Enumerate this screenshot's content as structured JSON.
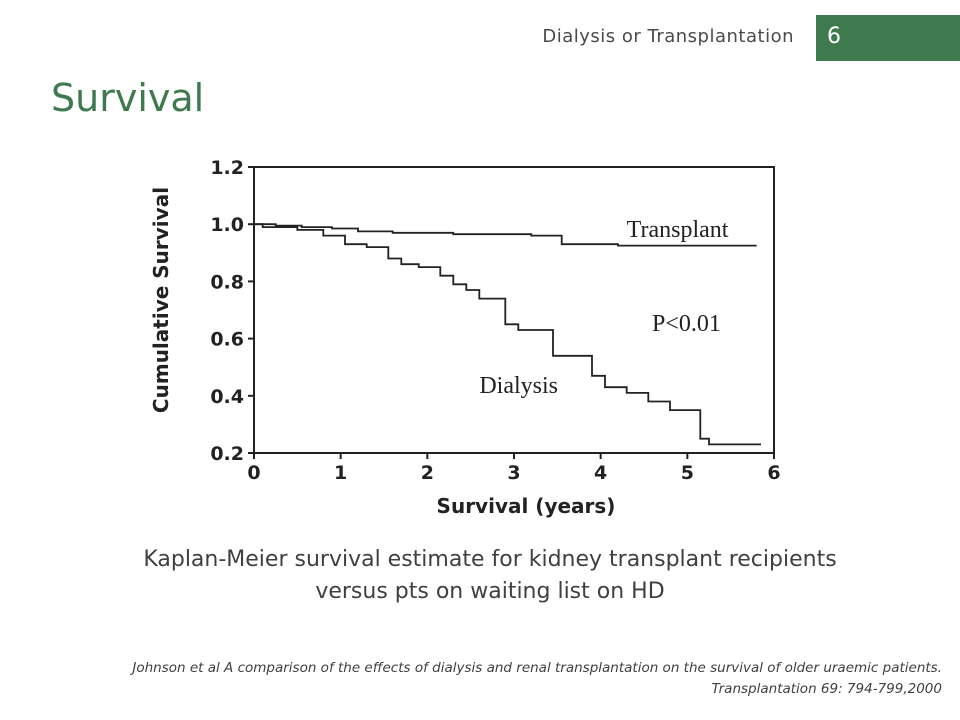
{
  "header": {
    "title": "Dialysis or Transplantation",
    "page_number": "6",
    "accent": "#3f7a4e"
  },
  "slide": {
    "title": "Survival"
  },
  "chart_data": {
    "type": "line",
    "title": "",
    "xlabel": "Survival (years)",
    "ylabel": "Cumulative Survival",
    "xlim": [
      0,
      6
    ],
    "ylim": [
      0.2,
      1.2
    ],
    "x_ticks": [
      0,
      1,
      2,
      3,
      4,
      5,
      6
    ],
    "y_ticks": [
      0.2,
      0.4,
      0.6,
      0.8,
      1.0,
      1.2
    ],
    "x_tick_labels": [
      "0",
      "1",
      "2",
      "3",
      "4",
      "5",
      "6"
    ],
    "y_tick_labels": [
      "0.2",
      "0.4",
      "0.6",
      "0.8",
      "1.0",
      "1.2"
    ],
    "grid": false,
    "legend": "none",
    "annotations": [
      {
        "text": "P<0.01",
        "x": 5.2,
        "y": 0.72
      },
      {
        "text": "Transplant",
        "x": 5.2,
        "y": 0.96
      },
      {
        "text": "Dialysis",
        "x": 3.1,
        "y": 0.41
      }
    ],
    "series": [
      {
        "name": "Transplant",
        "label": {
          "text": "Transplant",
          "x": 4.3,
          "y": 0.955
        },
        "points": [
          [
            0,
            1.0
          ],
          [
            0.25,
            1.0
          ],
          [
            0.25,
            0.995
          ],
          [
            0.55,
            0.995
          ],
          [
            0.55,
            0.99
          ],
          [
            0.9,
            0.99
          ],
          [
            0.9,
            0.985
          ],
          [
            1.2,
            0.985
          ],
          [
            1.2,
            0.975
          ],
          [
            1.6,
            0.975
          ],
          [
            1.6,
            0.97
          ],
          [
            2.3,
            0.97
          ],
          [
            2.3,
            0.965
          ],
          [
            3.2,
            0.965
          ],
          [
            3.2,
            0.96
          ],
          [
            3.55,
            0.96
          ],
          [
            3.55,
            0.93
          ],
          [
            4.2,
            0.93
          ],
          [
            4.2,
            0.925
          ],
          [
            5.8,
            0.925
          ]
        ]
      },
      {
        "name": "Dialysis",
        "label": {
          "text": "Dialysis",
          "x": 2.6,
          "y": 0.41
        },
        "points": [
          [
            0,
            1.0
          ],
          [
            0.1,
            1.0
          ],
          [
            0.1,
            0.99
          ],
          [
            0.5,
            0.99
          ],
          [
            0.5,
            0.98
          ],
          [
            0.8,
            0.98
          ],
          [
            0.8,
            0.96
          ],
          [
            1.05,
            0.96
          ],
          [
            1.05,
            0.93
          ],
          [
            1.3,
            0.93
          ],
          [
            1.3,
            0.92
          ],
          [
            1.55,
            0.92
          ],
          [
            1.55,
            0.88
          ],
          [
            1.7,
            0.88
          ],
          [
            1.7,
            0.86
          ],
          [
            1.9,
            0.86
          ],
          [
            1.9,
            0.85
          ],
          [
            2.15,
            0.85
          ],
          [
            2.15,
            0.82
          ],
          [
            2.3,
            0.82
          ],
          [
            2.3,
            0.79
          ],
          [
            2.45,
            0.79
          ],
          [
            2.45,
            0.77
          ],
          [
            2.6,
            0.77
          ],
          [
            2.6,
            0.74
          ],
          [
            2.9,
            0.74
          ],
          [
            2.9,
            0.65
          ],
          [
            3.05,
            0.65
          ],
          [
            3.05,
            0.63
          ],
          [
            3.45,
            0.63
          ],
          [
            3.45,
            0.54
          ],
          [
            3.9,
            0.54
          ],
          [
            3.9,
            0.47
          ],
          [
            4.05,
            0.47
          ],
          [
            4.05,
            0.43
          ],
          [
            4.3,
            0.43
          ],
          [
            4.3,
            0.41
          ],
          [
            4.55,
            0.41
          ],
          [
            4.55,
            0.38
          ],
          [
            4.8,
            0.38
          ],
          [
            4.8,
            0.35
          ],
          [
            5.15,
            0.35
          ],
          [
            5.15,
            0.25
          ],
          [
            5.25,
            0.25
          ],
          [
            5.25,
            0.23
          ],
          [
            5.85,
            0.23
          ]
        ]
      }
    ]
  },
  "caption": {
    "line1": "Kaplan-Meier survival estimate for kidney transplant recipients",
    "line2": "versus pts on waiting list on HD"
  },
  "reference": {
    "line1": "Johnson et al A comparison of the effects of dialysis and renal transplantation on the survival of older uraemic patients.",
    "line2": "Transplantation 69: 794-799,2000"
  }
}
